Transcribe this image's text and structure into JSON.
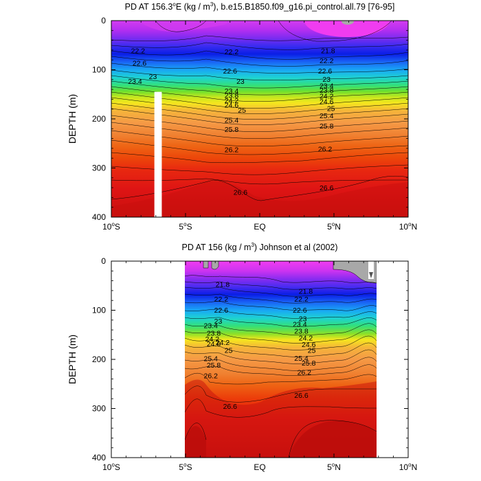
{
  "chart_data": [
    {
      "type": "contour",
      "title_pre": "PD AT 156.3",
      "title_deg": "o",
      "title_mid": "E (kg / m",
      "title_exp": "3",
      "title_post": "), b.e15.B1850.f09_g16.pi_control.all.79 [76-95]",
      "ylabel": "DEPTH (m)",
      "xlim": [
        -10,
        10
      ],
      "ylim": [
        400,
        0
      ],
      "x_ticks": [
        {
          "value": -10,
          "num": "10",
          "deg": "o",
          "hem": "S"
        },
        {
          "value": -5,
          "num": "5",
          "deg": "o",
          "hem": "S"
        },
        {
          "value": 0,
          "num": "EQ",
          "deg": "",
          "hem": ""
        },
        {
          "value": 5,
          "num": "5",
          "deg": "o",
          "hem": "N"
        },
        {
          "value": 10,
          "num": "10",
          "deg": "o",
          "hem": "N"
        }
      ],
      "y_ticks": [
        "0",
        "100",
        "200",
        "300",
        "400"
      ],
      "data_x_range": [
        -10,
        10
      ],
      "masked_column": {
        "lat_from": -7.1,
        "lat_to": -6.6,
        "depth_from": 145,
        "depth_to": 400
      },
      "contour_labels": [
        {
          "text": "22.2",
          "lat": -8.2,
          "depth": 61
        },
        {
          "text": "22.2",
          "lat": -1.9,
          "depth": 63
        },
        {
          "text": "21.8",
          "lat": 4.6,
          "depth": 61
        },
        {
          "text": "22.2",
          "lat": 4.5,
          "depth": 81
        },
        {
          "text": "22.6",
          "lat": -8.1,
          "depth": 86
        },
        {
          "text": "22.6",
          "lat": -2.0,
          "depth": 102
        },
        {
          "text": "22.6",
          "lat": 4.4,
          "depth": 102
        },
        {
          "text": "23",
          "lat": -7.2,
          "depth": 113
        },
        {
          "text": "23",
          "lat": -1.3,
          "depth": 123
        },
        {
          "text": "23",
          "lat": 4.5,
          "depth": 119
        },
        {
          "text": "23.4",
          "lat": -8.4,
          "depth": 123
        },
        {
          "text": "23.4",
          "lat": -1.9,
          "depth": 143
        },
        {
          "text": "23.4",
          "lat": 4.5,
          "depth": 132
        },
        {
          "text": "23.8",
          "lat": -1.9,
          "depth": 152
        },
        {
          "text": "23.8",
          "lat": 4.5,
          "depth": 141
        },
        {
          "text": "24.2",
          "lat": -1.9,
          "depth": 162
        },
        {
          "text": "24.2",
          "lat": 4.5,
          "depth": 153
        },
        {
          "text": "24.6",
          "lat": -1.9,
          "depth": 171
        },
        {
          "text": "24.6",
          "lat": 4.5,
          "depth": 164
        },
        {
          "text": "25",
          "lat": -1.2,
          "depth": 182
        },
        {
          "text": "25",
          "lat": 4.8,
          "depth": 178
        },
        {
          "text": "25.4",
          "lat": -1.9,
          "depth": 202
        },
        {
          "text": "25.4",
          "lat": 4.5,
          "depth": 193
        },
        {
          "text": "25.8",
          "lat": -1.9,
          "depth": 221
        },
        {
          "text": "25.8",
          "lat": 4.5,
          "depth": 214
        },
        {
          "text": "26.2",
          "lat": -1.9,
          "depth": 262
        },
        {
          "text": "26.2",
          "lat": 4.4,
          "depth": 261
        },
        {
          "text": "26.6",
          "lat": -1.3,
          "depth": 349
        },
        {
          "text": "26.6",
          "lat": 4.5,
          "depth": 340
        }
      ]
    },
    {
      "type": "contour",
      "title_pre": "PD AT 156 (kg / m",
      "title_exp": "3",
      "title_post": ") Johnson et al (2002)",
      "ylabel": "DEPTH (m)",
      "xlim": [
        -10,
        10
      ],
      "ylim": [
        400,
        0
      ],
      "x_ticks": [
        {
          "value": -10,
          "num": "10",
          "deg": "o",
          "hem": "S"
        },
        {
          "value": -5,
          "num": "5",
          "deg": "o",
          "hem": "S"
        },
        {
          "value": 0,
          "num": "EQ",
          "deg": "",
          "hem": ""
        },
        {
          "value": 5,
          "num": "5",
          "deg": "o",
          "hem": "N"
        },
        {
          "value": 10,
          "num": "10",
          "deg": "o",
          "hem": "N"
        }
      ],
      "y_ticks": [
        "0",
        "100",
        "200",
        "300",
        "400"
      ],
      "data_x_range": [
        -5,
        8
      ],
      "contour_labels": [
        {
          "text": "21.8",
          "lat": -2.5,
          "depth": 47
        },
        {
          "text": "21.8",
          "lat": 3.1,
          "depth": 61
        },
        {
          "text": "22.2",
          "lat": -2.6,
          "depth": 77
        },
        {
          "text": "22.2",
          "lat": 2.8,
          "depth": 77
        },
        {
          "text": "22.6",
          "lat": -2.6,
          "depth": 99
        },
        {
          "text": "22.6",
          "lat": 2.7,
          "depth": 99
        },
        {
          "text": "23",
          "lat": -2.8,
          "depth": 122
        },
        {
          "text": "23",
          "lat": 2.9,
          "depth": 117
        },
        {
          "text": "23.4",
          "lat": -3.3,
          "depth": 131
        },
        {
          "text": "23.4",
          "lat": 2.7,
          "depth": 128
        },
        {
          "text": "23.8",
          "lat": -3.1,
          "depth": 146
        },
        {
          "text": "23.8",
          "lat": 2.8,
          "depth": 142
        },
        {
          "text": "24.2",
          "lat": -3.2,
          "depth": 158
        },
        {
          "text": "24.2",
          "lat": 3.1,
          "depth": 156
        },
        {
          "text": "24.2",
          "lat": -2.5,
          "depth": 165
        },
        {
          "text": "24.6",
          "lat": -3.1,
          "depth": 168
        },
        {
          "text": "24.6",
          "lat": 3.3,
          "depth": 169
        },
        {
          "text": "25",
          "lat": -2.1,
          "depth": 181
        },
        {
          "text": "25",
          "lat": 3.5,
          "depth": 181
        },
        {
          "text": "25.4",
          "lat": -3.3,
          "depth": 198
        },
        {
          "text": "25.4",
          "lat": 2.8,
          "depth": 197
        },
        {
          "text": "25.8",
          "lat": -3.1,
          "depth": 211
        },
        {
          "text": "25.8",
          "lat": 3.3,
          "depth": 207
        },
        {
          "text": "26.2",
          "lat": -3.3,
          "depth": 233
        },
        {
          "text": "26.2",
          "lat": 3.0,
          "depth": 226
        },
        {
          "text": "26.6",
          "lat": -2.0,
          "depth": 295
        },
        {
          "text": "26.6",
          "lat": 2.8,
          "depth": 273
        }
      ]
    }
  ]
}
